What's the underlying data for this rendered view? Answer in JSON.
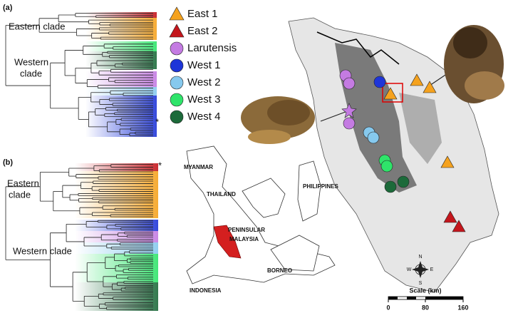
{
  "panel_a": {
    "label": "(a)",
    "eastern_clade": "Eastern clade",
    "western_clade": [
      "Western",
      "clade"
    ],
    "asterisk": "*"
  },
  "panel_b": {
    "label": "(b)",
    "eastern_clade": [
      "Eastern",
      "clade"
    ],
    "western_clade": "Western clade",
    "asterisk": "*"
  },
  "legend": [
    {
      "label": "East 1",
      "color": "#f5a21e",
      "shape": "triangle"
    },
    {
      "label": "East 2",
      "color": "#c4161c",
      "shape": "triangle"
    },
    {
      "label": "Larutensis",
      "color": "#c47be2",
      "shape": "circle"
    },
    {
      "label": "West 1",
      "color": "#1e35d8",
      "shape": "circle"
    },
    {
      "label": "West 2",
      "color": "#86c9ee",
      "shape": "circle"
    },
    {
      "label": "West 3",
      "color": "#2fe46a",
      "shape": "circle"
    },
    {
      "label": "West 4",
      "color": "#1c6a3a",
      "shape": "circle"
    }
  ],
  "inset_map": {
    "labels": [
      "MYANMAR",
      "THAILAND",
      "PHILIPPINES",
      "PENINSULAR",
      "MALAYSIA",
      "BORNEO",
      "INDONESIA"
    ]
  },
  "main_map": {
    "compass": [
      "N",
      "S",
      "E",
      "W"
    ],
    "scale": {
      "title": "Scale (km)",
      "ticks": [
        0,
        80,
        160
      ]
    }
  }
}
